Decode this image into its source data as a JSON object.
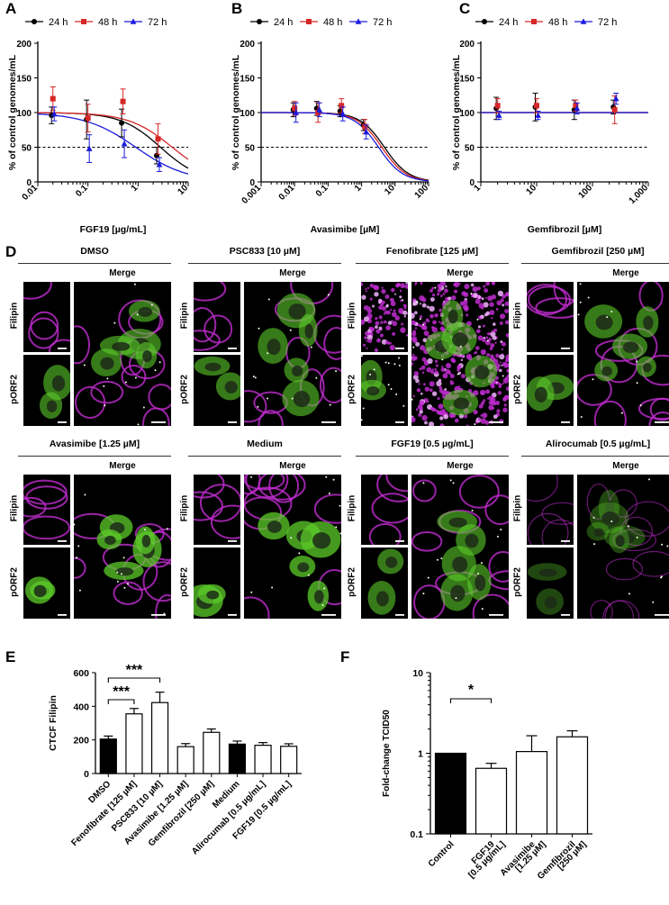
{
  "panel_letters": {
    "a": "A",
    "b": "B",
    "c": "C",
    "d": "D",
    "e": "E",
    "f": "F"
  },
  "colors": {
    "series_24h": "#000000",
    "series_48h": "#d62728",
    "series_72h": "#1a1adb",
    "filipin": "#c02cd0",
    "porf2": "#5ccc2a",
    "bar_black": "#000000",
    "bar_white": "#ffffff"
  },
  "chart_data": [
    {
      "id": "A",
      "type": "line",
      "legend": [
        "24 h",
        "48 h",
        "72 h"
      ],
      "legend_position": "top",
      "xlabel": "FGF19 [µg/mL]",
      "ylabel": "% of control genomes/mL",
      "xscale": "log",
      "xlim": [
        0.01,
        10
      ],
      "x_ticks": [
        "0.01",
        "0.1",
        "1",
        "10"
      ],
      "ylim": [
        0,
        200
      ],
      "y_ticks": [
        "0",
        "50",
        "100",
        "150",
        "200"
      ],
      "reference_line": 50,
      "series": [
        {
          "name": "24 h",
          "marker": "circle",
          "x": [
            0.02,
            0.1,
            0.5,
            2.5
          ],
          "y": [
            96,
            90,
            85,
            38
          ],
          "err": [
            12,
            28,
            20,
            12
          ],
          "fit_ic50": 2.8,
          "fit_hill": 1.1
        },
        {
          "name": "48 h",
          "marker": "square",
          "x": [
            0.02,
            0.1,
            0.5,
            2.5
          ],
          "y": [
            120,
            92,
            116,
            62
          ],
          "err": [
            17,
            20,
            18,
            22
          ],
          "fit_ic50": 4.8,
          "fit_hill": 1.0
        },
        {
          "name": "72 h",
          "marker": "triangle",
          "x": [
            0.02,
            0.1,
            0.5,
            2.5
          ],
          "y": [
            98,
            48,
            55,
            25
          ],
          "err": [
            10,
            20,
            20,
            10
          ],
          "fit_ic50": 0.9,
          "fit_hill": 0.85
        }
      ]
    },
    {
      "id": "B",
      "type": "line",
      "legend": [
        "24 h",
        "48 h",
        "72 h"
      ],
      "legend_position": "top",
      "xlabel": "Avasimibe [µM]",
      "ylabel": "% of control genomes/mL",
      "xscale": "log",
      "xlim": [
        0.001,
        100
      ],
      "x_ticks": [
        "0.001",
        "0.01",
        "0.1",
        "1",
        "10",
        "100"
      ],
      "ylim": [
        0,
        200
      ],
      "y_ticks": [
        "0",
        "50",
        "100",
        "150",
        "200"
      ],
      "reference_line": 50,
      "series": [
        {
          "name": "24 h",
          "marker": "circle",
          "x": [
            0.01,
            0.05,
            0.25,
            1.25
          ],
          "y": [
            104,
            106,
            102,
            82
          ],
          "err": [
            10,
            10,
            8,
            8
          ],
          "fit_ic50": 4.8,
          "fit_hill": 1.2
        },
        {
          "name": "48 h",
          "marker": "square",
          "x": [
            0.01,
            0.05,
            0.25,
            1.25
          ],
          "y": [
            106,
            100,
            110,
            80
          ],
          "err": [
            10,
            14,
            10,
            10
          ],
          "fit_ic50": 4.0,
          "fit_hill": 1.2
        },
        {
          "name": "72 h",
          "marker": "triangle",
          "x": [
            0.01,
            0.05,
            0.25,
            1.25
          ],
          "y": [
            100,
            104,
            98,
            72
          ],
          "err": [
            14,
            10,
            10,
            10
          ],
          "fit_ic50": 3.2,
          "fit_hill": 1.2
        }
      ]
    },
    {
      "id": "C",
      "type": "line",
      "legend": [
        "24 h",
        "48 h",
        "72 h"
      ],
      "legend_position": "top",
      "xlabel": "Gemfibrozil [µM]",
      "ylabel": "% of control genomes/mL",
      "xscale": "log",
      "xlim": [
        1,
        1000
      ],
      "x_ticks": [
        "1",
        "10",
        "100",
        "1,000"
      ],
      "ylim": [
        0,
        200
      ],
      "y_ticks": [
        "0",
        "50",
        "100",
        "150",
        "200"
      ],
      "reference_line": 50,
      "series": [
        {
          "name": "24 h",
          "marker": "circle",
          "x": [
            2,
            10,
            50,
            250
          ],
          "y": [
            106,
            108,
            104,
            108
          ],
          "err": [
            16,
            20,
            14,
            10
          ],
          "flat": 100
        },
        {
          "name": "48 h",
          "marker": "square",
          "x": [
            2,
            10,
            50,
            250
          ],
          "y": [
            110,
            110,
            110,
            104
          ],
          "err": [
            10,
            10,
            8,
            20
          ],
          "flat": 100
        },
        {
          "name": "72 h",
          "marker": "triangle",
          "x": [
            2,
            10,
            50,
            250
          ],
          "y": [
            96,
            96,
            106,
            120
          ],
          "err": [
            6,
            6,
            8,
            8
          ],
          "flat": 100
        }
      ]
    },
    {
      "id": "E",
      "type": "bar",
      "ylabel": "CTCF Filipin",
      "ylim": [
        0,
        600
      ],
      "y_ticks": [
        "0",
        "200",
        "400",
        "600"
      ],
      "categories": [
        "DMSO",
        "Fenofibrate [125 µM]",
        "PSC833 [10 µM]",
        "Avasimibe [1.25 µM]",
        "Gemfibrozil [250 µM]",
        "Medium",
        "Alirocumab [0.5 µg/mL]",
        "FGF19 [0.5 µg/mL]"
      ],
      "values": [
        205,
        355,
        422,
        160,
        245,
        175,
        168,
        162
      ],
      "errors": [
        18,
        32,
        62,
        18,
        20,
        18,
        16,
        15
      ],
      "fills": [
        "black",
        "white",
        "white",
        "white",
        "white",
        "black",
        "white",
        "white"
      ],
      "significance": [
        {
          "from": 0,
          "to": 1,
          "label": "***"
        },
        {
          "from": 0,
          "to": 2,
          "label": "***"
        }
      ]
    },
    {
      "id": "F",
      "type": "bar",
      "ylabel": "Fold-change TCID50",
      "yscale": "log",
      "ylim": [
        0.1,
        10
      ],
      "y_ticks": [
        "0.1",
        "1",
        "10"
      ],
      "categories": [
        "Control",
        "FGF19 [0.5 µg/mL]",
        "Avasimibe [1.25 µM]",
        "Gemfibrozil [250 µM]"
      ],
      "category_lines": [
        [
          "Control"
        ],
        [
          "FGF19",
          "[0.5 µg/mL]"
        ],
        [
          "Avasimibe",
          "[1.25 µM]"
        ],
        [
          "Gemfibrozil",
          "[250 µM]"
        ]
      ],
      "values": [
        1.0,
        0.65,
        1.05,
        1.6
      ],
      "errors_upper": [
        1.0,
        0.75,
        1.65,
        1.9
      ],
      "fills": [
        "black",
        "white",
        "white",
        "white"
      ],
      "significance": [
        {
          "from": 0,
          "to": 1,
          "label": "*"
        }
      ]
    }
  ],
  "micrographs": {
    "merge_label": "Merge",
    "filipin_label": "Filipin",
    "porf2_label": "pORF2",
    "conditions": [
      {
        "title": "DMSO",
        "style": "normal"
      },
      {
        "title": "PSC833 [10 µM]",
        "style": "normal"
      },
      {
        "title": "Fenofibrate [125 µM]",
        "style": "dense"
      },
      {
        "title": "Gemfibrozil [250 µM]",
        "style": "normal"
      },
      {
        "title": "Avasimibe [1.25 µM]",
        "style": "bright"
      },
      {
        "title": "Medium",
        "style": "bright"
      },
      {
        "title": "FGF19 [0.5 µg/mL]",
        "style": "normal"
      },
      {
        "title": "Alirocumab [0.5 µg/mL]",
        "style": "faint"
      }
    ]
  }
}
